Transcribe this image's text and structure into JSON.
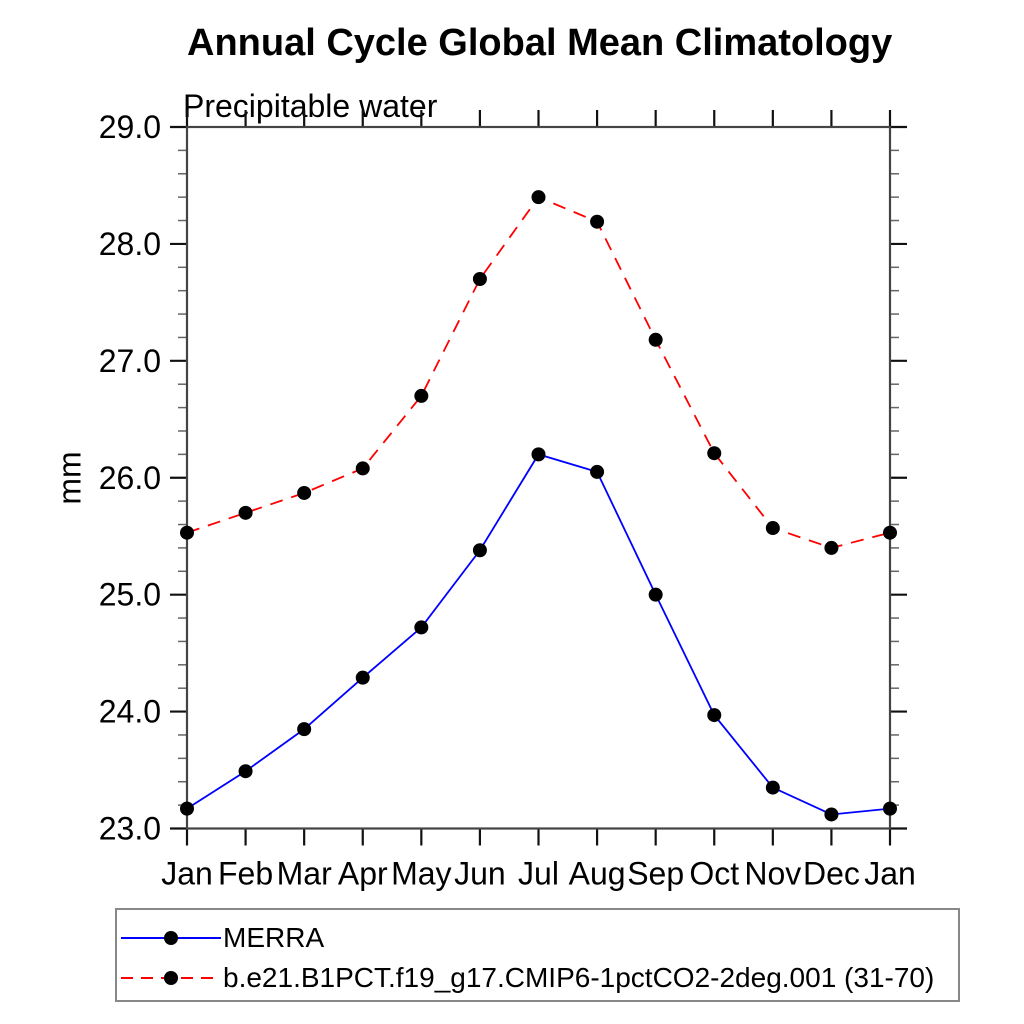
{
  "chart_data": {
    "type": "line",
    "title": "Annual Cycle Global Mean Climatology",
    "subtitle": "Precipitable water",
    "ylabel": "mm",
    "xlabel": "",
    "x_tick_labels": [
      "Jan",
      "Feb",
      "Mar",
      "Apr",
      "May",
      "Jun",
      "Jul",
      "Aug",
      "Sep",
      "Oct",
      "Nov",
      "Dec",
      "Jan"
    ],
    "y_tick_labels": [
      "23.0",
      "24.0",
      "25.0",
      "26.0",
      "27.0",
      "28.0",
      "29.0"
    ],
    "ylim": [
      23.0,
      29.0
    ],
    "y_minor_step": 0.2,
    "grid": false,
    "legend_position": "bottom-left-box",
    "marker": "filled-circle",
    "marker_color": "#000000",
    "series": [
      {
        "name": "MERRA",
        "color": "#0000ff",
        "line_style": "solid",
        "values": [
          23.17,
          23.49,
          23.85,
          24.29,
          24.72,
          25.38,
          26.2,
          26.05,
          25.0,
          23.97,
          23.35,
          23.12,
          23.17
        ]
      },
      {
        "name": "b.e21.B1PCT.f19_g17.CMIP6-1pctCO2-2deg.001 (31-70)",
        "color": "#ff0000",
        "line_style": "dashed",
        "values": [
          25.53,
          25.7,
          25.87,
          26.08,
          26.7,
          27.7,
          28.4,
          28.19,
          27.18,
          26.21,
          25.57,
          25.4,
          25.53
        ]
      }
    ]
  },
  "style": {
    "axis_color": "#444444",
    "major_tick_color": "#111111",
    "minor_tick_color": "#666666",
    "background": "#ffffff"
  }
}
